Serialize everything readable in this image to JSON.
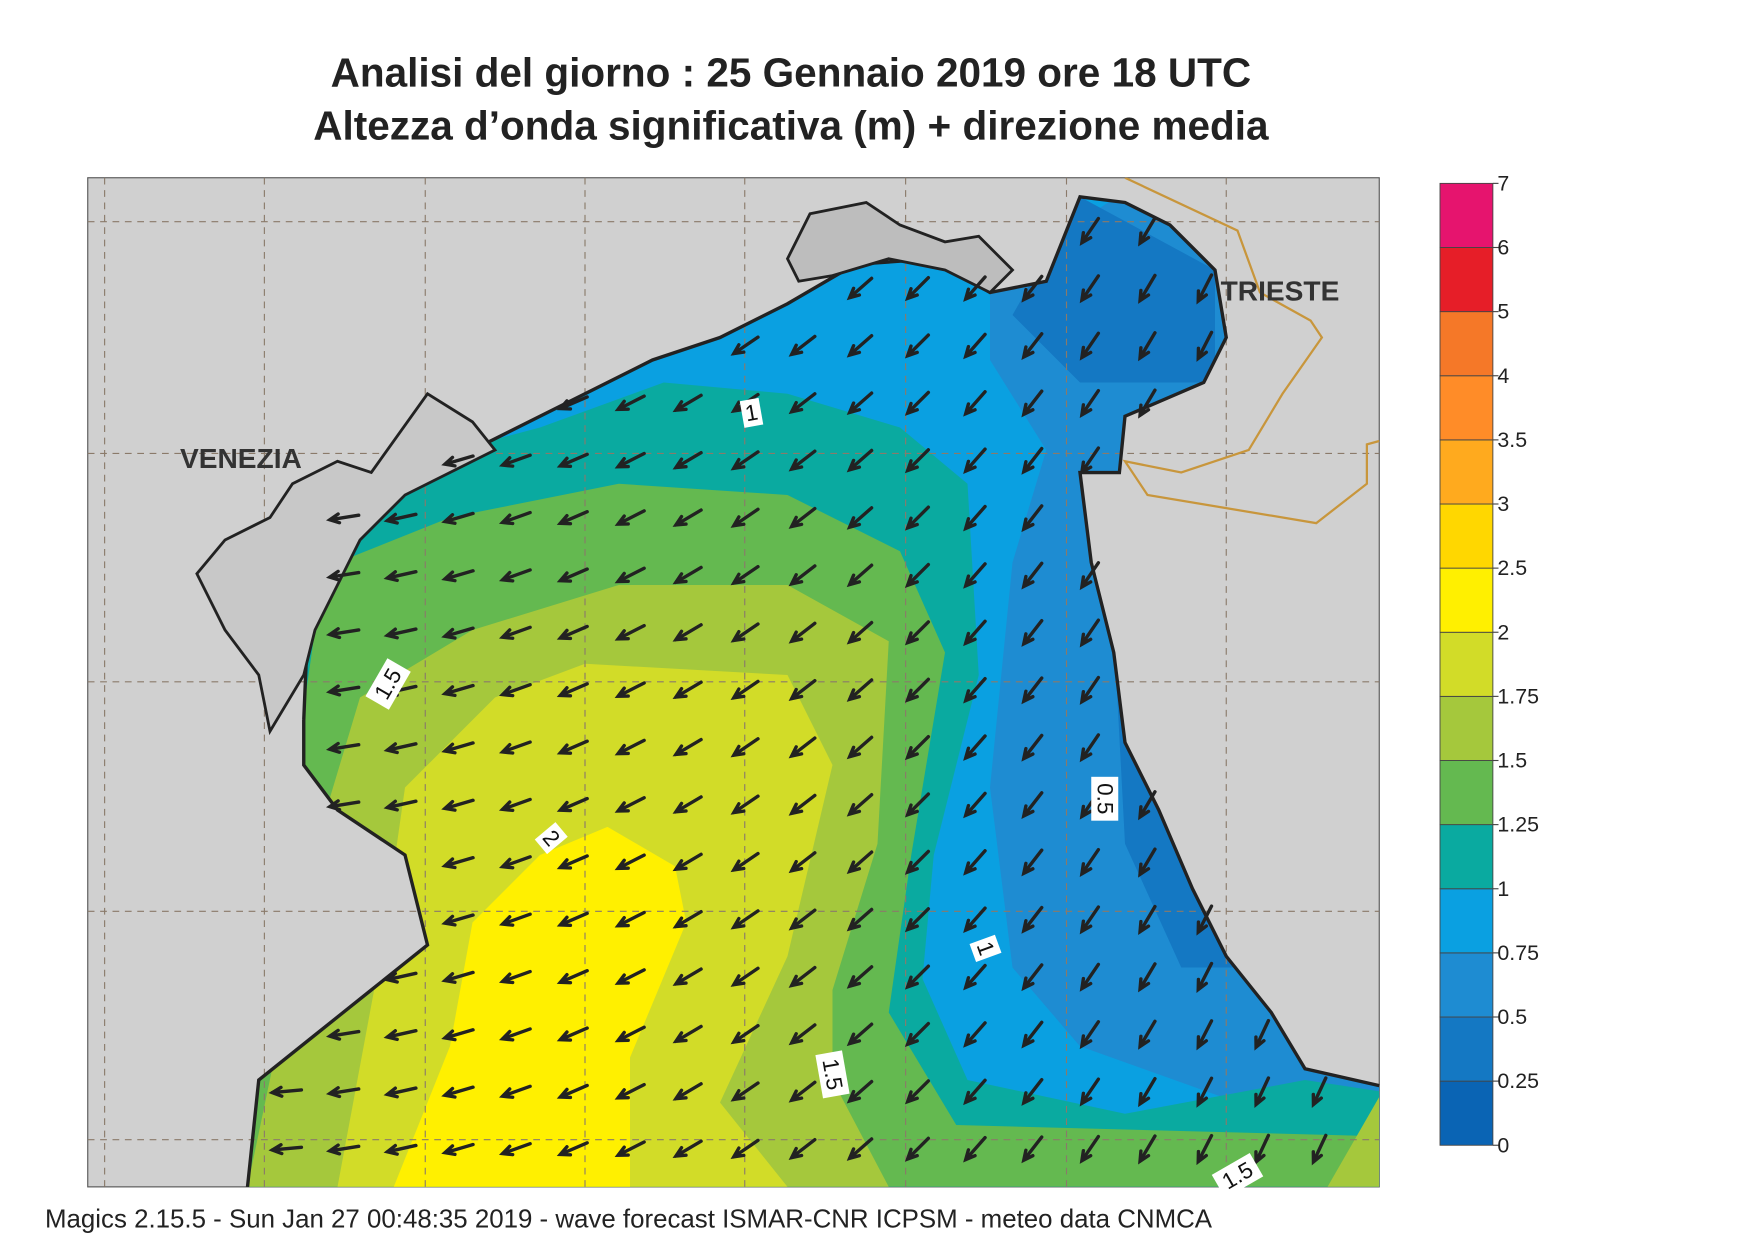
{
  "title": [
    "Analisi del giorno :  25  Gennaio  2019   ore 18 UTC",
    "Altezza d’onda significativa (m) + direzione media"
  ],
  "places": [
    "VENEZIA",
    "TRIESTE"
  ],
  "contour_labels": [
    1,
    1.5,
    2,
    0.5,
    1,
    1.5,
    1.5
  ],
  "colorbar": {
    "levels": [
      0,
      0.25,
      0.5,
      0.75,
      1,
      1.25,
      1.5,
      1.75,
      2,
      2.5,
      3,
      3.5,
      4,
      5,
      6,
      7
    ],
    "colors": [
      "#0a64b4",
      "#1478c3",
      "#1e8cd2",
      "#0aa0e1",
      "#0aaaa0",
      "#64b950",
      "#a5c83c",
      "#d2dc28",
      "#fff000",
      "#ffd700",
      "#ffaa1e",
      "#ff8c28",
      "#f57828",
      "#e61e28",
      "#e6146e"
    ]
  },
  "footer": "Magics 2.15.5 - Sun Jan 27 00:48:35 2019 - wave forecast  ISMAR-CNR  ICPSM - meteo data   CNMCA"
}
